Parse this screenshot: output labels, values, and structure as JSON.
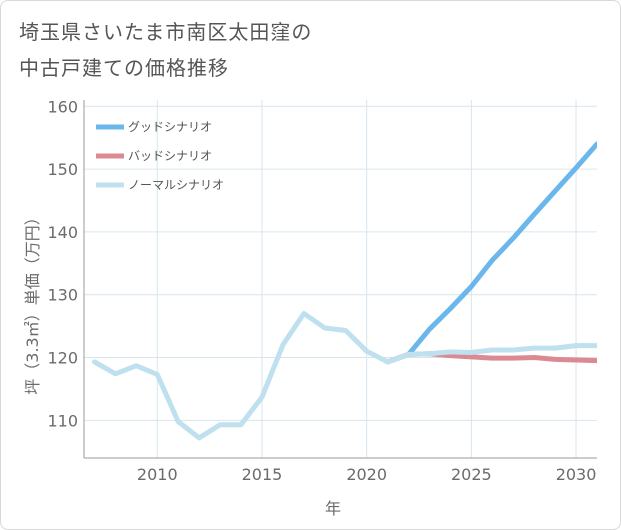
{
  "title_lines": [
    "埼玉県さいたま市南区太田窪の",
    "中古戸建ての価格推移"
  ],
  "chart_data": {
    "type": "line",
    "title": "埼玉県さいたま市南区太田窪の中古戸建ての価格推移",
    "xlabel": "年",
    "ylabel": "坪（3.3㎡）単価（万円）",
    "xlim": [
      2006.5,
      2031
    ],
    "ylim": [
      104,
      161
    ],
    "xticks": [
      2010,
      2015,
      2020,
      2025,
      2030
    ],
    "yticks": [
      110,
      120,
      130,
      140,
      150,
      160
    ],
    "grid": true,
    "legend_position": "top-left",
    "series": [
      {
        "name": "グッドシナリオ",
        "color": "#6bb6ea",
        "x": [
          2021,
          2022,
          2023,
          2024,
          2025,
          2026,
          2027,
          2028,
          2029,
          2030,
          2031
        ],
        "values": [
          119.3,
          120.5,
          124.5,
          127.8,
          131.3,
          135.5,
          139.0,
          142.8,
          146.5,
          150.2,
          154.0
        ]
      },
      {
        "name": "バッドシナリオ",
        "color": "#dc8a92",
        "x": [
          2021,
          2022,
          2023,
          2024,
          2025,
          2026,
          2027,
          2028,
          2029,
          2030,
          2031
        ],
        "values": [
          119.3,
          120.5,
          120.6,
          120.3,
          120.1,
          119.9,
          119.9,
          120.0,
          119.7,
          119.6,
          119.5
        ]
      },
      {
        "name": "ノーマルシナリオ",
        "color": "#bfe0ee",
        "x": [
          2007,
          2008,
          2009,
          2010,
          2011,
          2012,
          2013,
          2014,
          2015,
          2016,
          2017,
          2018,
          2019,
          2020,
          2021,
          2022,
          2023,
          2024,
          2025,
          2026,
          2027,
          2028,
          2029,
          2030,
          2031
        ],
        "values": [
          119.3,
          117.4,
          118.7,
          117.3,
          109.8,
          107.2,
          109.3,
          109.3,
          113.7,
          122.0,
          127.0,
          124.7,
          124.3,
          121.0,
          119.3,
          120.5,
          120.6,
          120.9,
          120.8,
          121.2,
          121.2,
          121.5,
          121.5,
          121.9,
          121.9
        ]
      }
    ]
  }
}
